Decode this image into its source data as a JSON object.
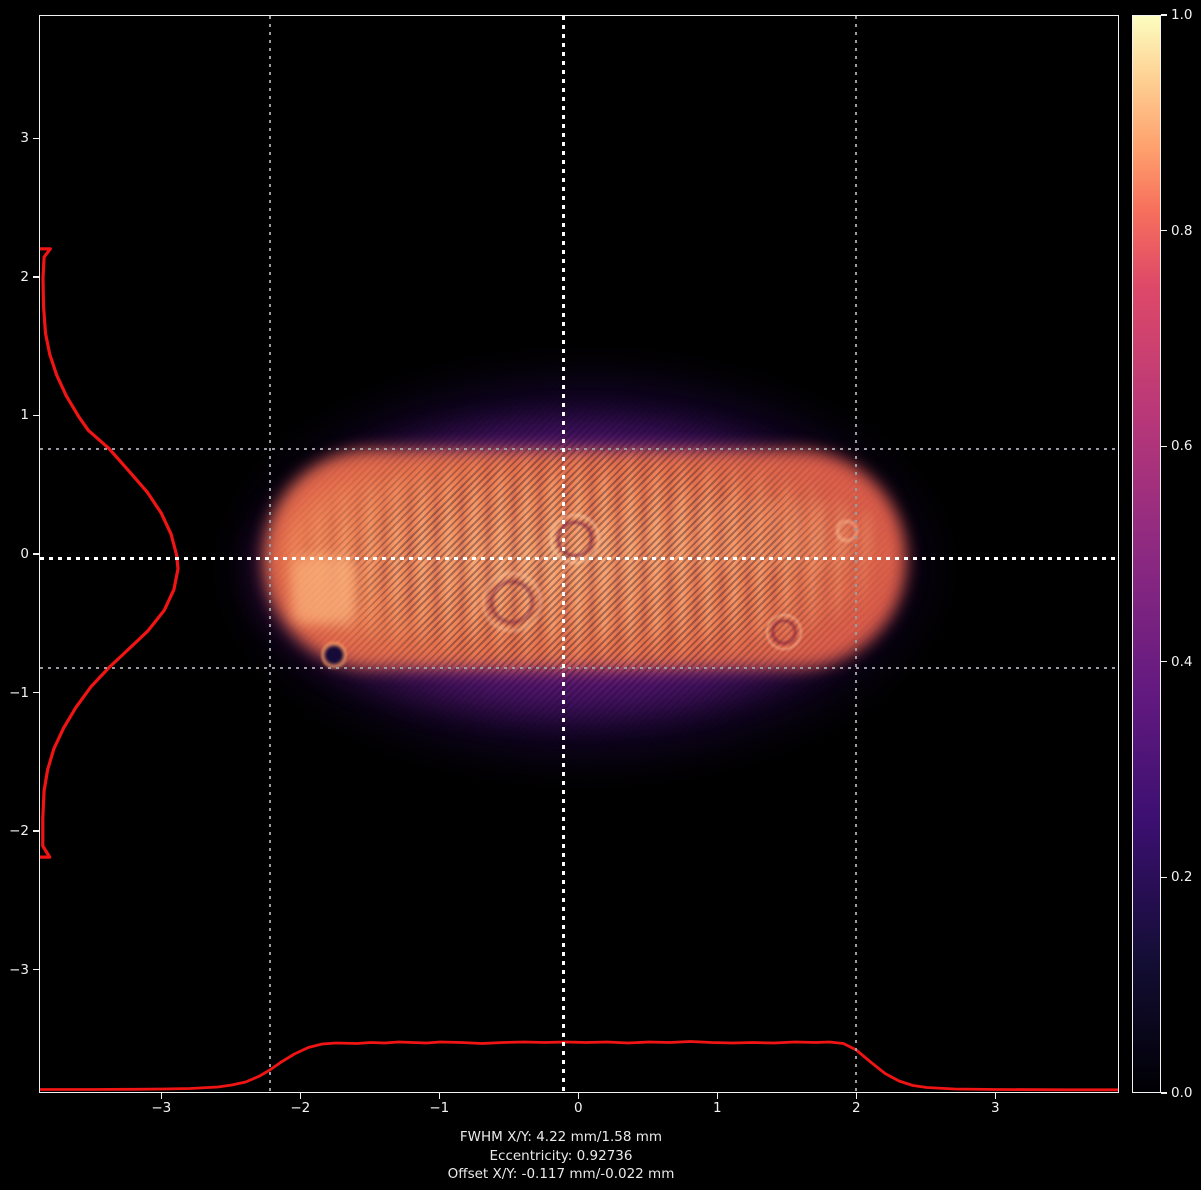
{
  "figure": {
    "background": "#000000",
    "colors": {
      "profile_line": "#f01414",
      "crosshair": "#ffffff",
      "fwhm_marker": "#9a9aa0",
      "axis": "#f2f2f2",
      "text": "#eaeaea"
    },
    "footer": {
      "fwhm_line": "FWHM X/Y: 4.22 mm/1.58 mm",
      "eccentricity_line": "Eccentricity: 0.92736",
      "offset_line": "Offset X/Y: -0.117 mm/-0.022 mm"
    }
  },
  "chart_data": {
    "type": "heatmap",
    "title": "",
    "xlabel": "",
    "ylabel": "",
    "colormap": "magma",
    "grid": "fwhm and centroid marker lines only",
    "x_axis": {
      "unit": "mm",
      "range": [
        -3.88,
        3.89
      ],
      "ticks": [
        -3,
        -2,
        -1,
        0,
        1,
        2,
        3
      ],
      "tick_labels": [
        "−3",
        "−2",
        "−1",
        "0",
        "1",
        "2",
        "3"
      ]
    },
    "y_axis": {
      "unit": "mm",
      "range": [
        -3.89,
        3.89
      ],
      "ticks": [
        -3,
        -2,
        -1,
        0,
        1,
        2,
        3
      ],
      "tick_labels": [
        "−3",
        "−2",
        "−1",
        "0",
        "1",
        "2",
        "3"
      ]
    },
    "colorbar": {
      "range": [
        0.0,
        1.0
      ],
      "ticks": [
        0.0,
        0.2,
        0.4,
        0.6,
        0.8,
        1.0
      ],
      "tick_labels": [
        "0.0",
        "0.2",
        "0.4",
        "0.6",
        "0.8",
        "1.0"
      ],
      "legend_position": "right",
      "gradient_stops": [
        [
          0.0,
          "#000004"
        ],
        [
          0.2,
          "#3b0f70"
        ],
        [
          0.4,
          "#8c2981"
        ],
        [
          0.6,
          "#de4968"
        ],
        [
          0.8,
          "#fe9f6d"
        ],
        [
          1.0,
          "#fcfdbf"
        ]
      ]
    },
    "beam": {
      "center_mm": {
        "x": -0.117,
        "y": -0.022
      },
      "fwhm_mm": {
        "x": 4.22,
        "y": 1.58
      },
      "eccentricity": 0.92736,
      "fwhm_marker_lines_x_mm": [
        -2.227,
        1.993
      ],
      "fwhm_marker_lines_y_mm": [
        -0.812,
        0.768
      ],
      "core_intensity_normalized": [
        0.7,
        0.85
      ],
      "halo_intensity_normalized": [
        0.1,
        0.4
      ]
    },
    "x_profile": {
      "x_mm": [
        -3.88,
        -3.5,
        -3.2,
        -3.0,
        -2.8,
        -2.6,
        -2.5,
        -2.4,
        -2.3,
        -2.227,
        -2.15,
        -2.05,
        -1.95,
        -1.85,
        -1.75,
        -1.6,
        -1.5,
        -1.4,
        -1.3,
        -1.2,
        -1.1,
        -1.0,
        -0.85,
        -0.7,
        -0.55,
        -0.4,
        -0.25,
        -0.1,
        0.05,
        0.2,
        0.35,
        0.5,
        0.65,
        0.8,
        0.95,
        1.1,
        1.25,
        1.4,
        1.55,
        1.7,
        1.8,
        1.9,
        1.993,
        2.1,
        2.2,
        2.3,
        2.4,
        2.5,
        2.7,
        3.0,
        3.5,
        3.89
      ],
      "intensity": [
        0.01,
        0.01,
        0.015,
        0.02,
        0.03,
        0.06,
        0.1,
        0.16,
        0.28,
        0.4,
        0.55,
        0.72,
        0.85,
        0.92,
        0.94,
        0.93,
        0.95,
        0.94,
        0.96,
        0.95,
        0.94,
        0.96,
        0.95,
        0.93,
        0.95,
        0.96,
        0.95,
        0.96,
        0.95,
        0.96,
        0.94,
        0.96,
        0.95,
        0.97,
        0.95,
        0.94,
        0.95,
        0.94,
        0.96,
        0.95,
        0.96,
        0.93,
        0.8,
        0.55,
        0.33,
        0.18,
        0.09,
        0.05,
        0.02,
        0.01,
        0.005,
        0.005
      ]
    },
    "y_profile": {
      "y_mm": [
        2.21,
        2.21,
        2.15,
        2.0,
        1.8,
        1.6,
        1.45,
        1.3,
        1.15,
        1.0,
        0.9,
        0.768,
        0.6,
        0.45,
        0.3,
        0.15,
        0.0,
        -0.1,
        -0.25,
        -0.4,
        -0.55,
        -0.7,
        -0.812,
        -0.95,
        -1.1,
        -1.25,
        -1.4,
        -1.55,
        -1.7,
        -1.9,
        -2.1,
        -2.18,
        -2.18
      ],
      "intensity": [
        0.0,
        0.075,
        0.03,
        0.022,
        0.025,
        0.04,
        0.07,
        0.12,
        0.19,
        0.28,
        0.35,
        0.5,
        0.65,
        0.78,
        0.88,
        0.95,
        0.99,
        1.0,
        0.97,
        0.9,
        0.78,
        0.62,
        0.5,
        0.37,
        0.26,
        0.17,
        0.1,
        0.055,
        0.03,
        0.02,
        0.02,
        0.07,
        0.0
      ]
    }
  }
}
